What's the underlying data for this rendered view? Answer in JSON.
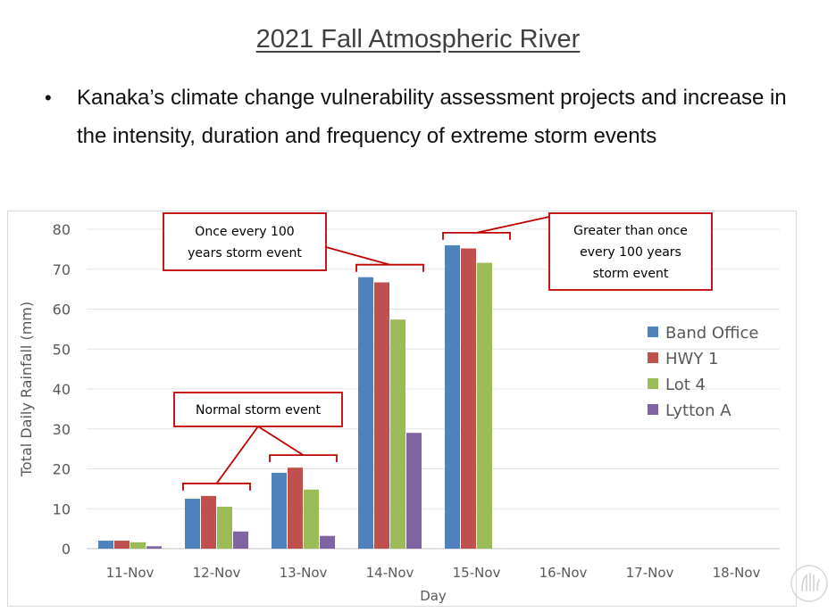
{
  "slide": {
    "title": "2021 Fall Atmospheric River",
    "bullet": "Kanaka’s climate change vulnerability assessment projects and increase in the intensity, duration and frequency of extreme storm events"
  },
  "chart_data": {
    "type": "bar",
    "categories": [
      "11-Nov",
      "12-Nov",
      "13-Nov",
      "14-Nov",
      "15-Nov",
      "16-Nov",
      "17-Nov",
      "18-Nov"
    ],
    "series": [
      {
        "name": "Band Office",
        "color": "#4f81bd",
        "values": [
          2.0,
          12.5,
          19.0,
          68.0,
          76.0,
          0,
          0,
          0
        ]
      },
      {
        "name": "HWY 1",
        "color": "#c0504d",
        "values": [
          2.0,
          13.2,
          20.3,
          66.7,
          75.2,
          0,
          0,
          0
        ]
      },
      {
        "name": "Lot 4",
        "color": "#9bbb59",
        "values": [
          1.6,
          10.5,
          14.8,
          57.4,
          71.6,
          0,
          0,
          0
        ]
      },
      {
        "name": "Lytton A",
        "color": "#8064a2",
        "values": [
          0.6,
          4.3,
          3.2,
          29.0,
          0,
          0,
          0,
          0
        ]
      }
    ],
    "xlabel": "Day",
    "ylabel": "Total Daily Rainfall (mm)",
    "ylim": [
      0,
      80
    ],
    "yticks": [
      0,
      10,
      20,
      30,
      40,
      50,
      60,
      70,
      80
    ],
    "grid": true,
    "legend": "right",
    "annotations": [
      {
        "text": "Normal storm event",
        "targets": [
          "12-Nov",
          "13-Nov"
        ]
      },
      {
        "text": "Once every 100 years storm event",
        "targets": [
          "14-Nov"
        ]
      },
      {
        "text": "Greater than once every 100 years storm event",
        "targets": [
          "15-Nov"
        ]
      }
    ],
    "annotation_color": "#c00000"
  }
}
